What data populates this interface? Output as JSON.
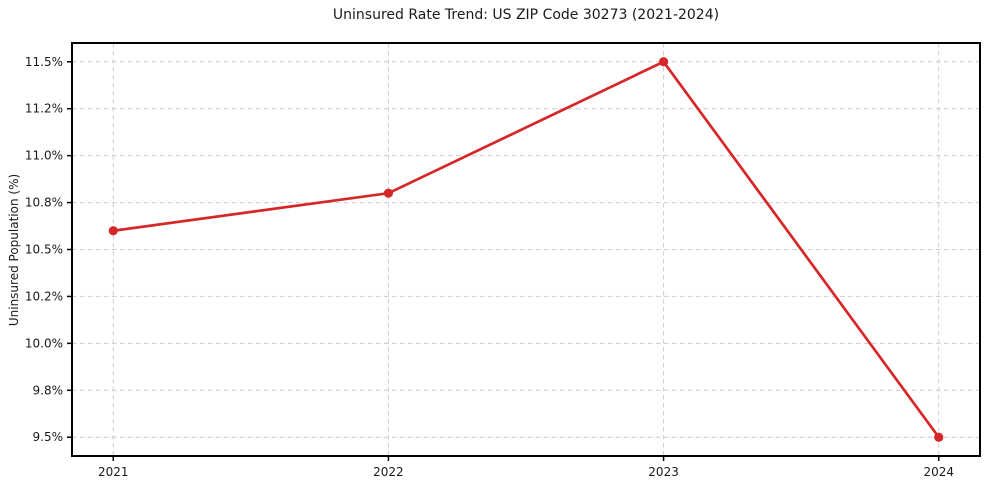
{
  "chart_data": {
    "type": "line",
    "title": "Uninsured Rate Trend: US ZIP Code 30273 (2021-2024)",
    "xlabel": "",
    "ylabel": "Uninsured Population (%)",
    "x": [
      2021,
      2022,
      2023,
      2024
    ],
    "x_tick_labels": [
      "2021",
      "2022",
      "2023",
      "2024"
    ],
    "values": [
      10.6,
      10.8,
      11.5,
      9.5
    ],
    "y_ticks": [
      {
        "value": 9.5,
        "label": "9.5%"
      },
      {
        "value": 9.75,
        "label": "9.8%"
      },
      {
        "value": 10.0,
        "label": "10.0%"
      },
      {
        "value": 10.25,
        "label": "10.2%"
      },
      {
        "value": 10.5,
        "label": "10.5%"
      },
      {
        "value": 10.75,
        "label": "10.8%"
      },
      {
        "value": 11.0,
        "label": "11.0%"
      },
      {
        "value": 11.25,
        "label": "11.2%"
      },
      {
        "value": 11.5,
        "label": "11.5%"
      }
    ],
    "xlim": [
      2020.85,
      2024.15
    ],
    "ylim": [
      9.4,
      11.6
    ],
    "grid": true,
    "legend_position": "none",
    "line_color": "#d62728",
    "grid_color": "#cccccc",
    "axis_color": "#000000",
    "text_color": "#1a1a1a"
  }
}
